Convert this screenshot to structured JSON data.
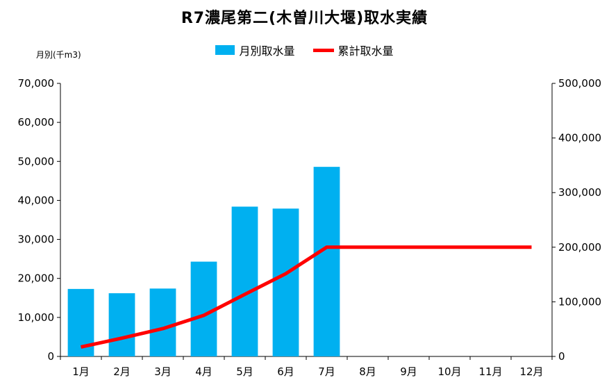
{
  "chart_data": {
    "type": "bar",
    "title": "R7濃尾第二(木曽川大堰)取水実績",
    "ylabel": "月別(千m3)",
    "categories": [
      "1月",
      "2月",
      "3月",
      "4月",
      "5月",
      "6月",
      "7月",
      "8月",
      "9月",
      "10月",
      "11月",
      "12月"
    ],
    "series": [
      {
        "name": "月別取水量",
        "type": "bar",
        "axis": "left",
        "color": "#00b0f0",
        "values": [
          17300,
          16200,
          17400,
          24300,
          38400,
          37900,
          48600,
          null,
          null,
          null,
          null,
          null
        ]
      },
      {
        "name": "累計取水量",
        "type": "line",
        "axis": "right",
        "color": "#ff0000",
        "values": [
          17300,
          33500,
          50900,
          75200,
          113600,
          151500,
          200100,
          200100,
          200100,
          200100,
          200100,
          200100
        ]
      }
    ],
    "ylim": [
      0,
      70000
    ],
    "y2lim": [
      0,
      500000
    ],
    "yticks": [
      "0",
      "10,000",
      "20,000",
      "30,000",
      "40,000",
      "50,000",
      "60,000",
      "70,000"
    ],
    "y2ticks": [
      "0",
      "100,000",
      "200,000",
      "300,000",
      "400,000",
      "500,000"
    ],
    "grid": false,
    "legend_position": "top-center"
  }
}
